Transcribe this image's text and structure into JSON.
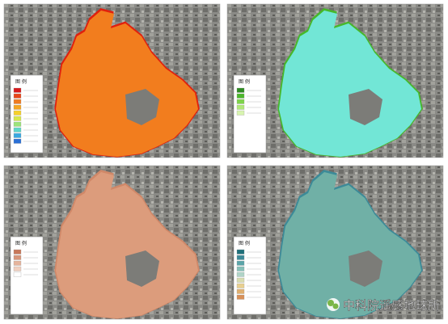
{
  "panels": [
    {
      "legend_title": "图 例"
    },
    {
      "legend_title": "图 例"
    },
    {
      "legend_title": "图 例"
    },
    {
      "legend_title": "图 例"
    }
  ],
  "watermark": "中科院遥感地球所"
}
